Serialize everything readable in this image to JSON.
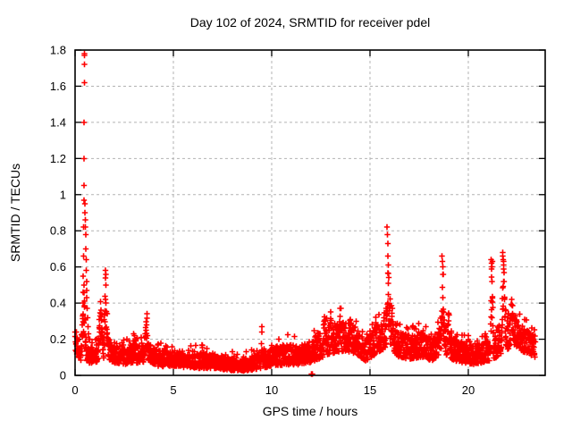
{
  "figure": {
    "title": "Day 102 of 2024, SRMTID for receiver pdel",
    "xlabel": "GPS time / hours",
    "ylabel": "SRMTID / TECUs"
  },
  "chart_data": {
    "type": "scatter",
    "marker": "plus",
    "marker_color": "#ff0000",
    "border_color": "#000000",
    "grid": true,
    "grid_color": "#b3b3b3",
    "xlim": [
      0,
      23.91
    ],
    "ylim": [
      0,
      1.8
    ],
    "x_ticks": [
      {
        "v": 0,
        "label": "0"
      },
      {
        "v": 5,
        "label": "5"
      },
      {
        "v": 10,
        "label": "10"
      },
      {
        "v": 15,
        "label": "15"
      },
      {
        "v": 20,
        "label": "20"
      }
    ],
    "y_ticks": [
      {
        "v": 0,
        "label": "0"
      },
      {
        "v": 0.2,
        "label": "0.2"
      },
      {
        "v": 0.4,
        "label": "0.4"
      },
      {
        "v": 0.6,
        "label": "0.6"
      },
      {
        "v": 0.8,
        "label": "0.8"
      },
      {
        "v": 1,
        "label": "1"
      },
      {
        "v": 1.2,
        "label": "1.2"
      },
      {
        "v": 1.4,
        "label": "1.4"
      },
      {
        "v": 1.6,
        "label": "1.6"
      },
      {
        "v": 1.8,
        "label": "1.8"
      }
    ],
    "t_start": 0,
    "t_end": 23.4,
    "baseline_envelope": [
      [
        0.0,
        0.14,
        0.26
      ],
      [
        0.2,
        0.09,
        0.2
      ],
      [
        0.35,
        0.08,
        0.18
      ],
      [
        0.7,
        0.07,
        0.16
      ],
      [
        1.0,
        0.07,
        0.15
      ],
      [
        1.3,
        0.09,
        0.22
      ],
      [
        1.6,
        0.1,
        0.24
      ],
      [
        1.9,
        0.07,
        0.16
      ],
      [
        2.5,
        0.06,
        0.15
      ],
      [
        3.0,
        0.07,
        0.2
      ],
      [
        3.3,
        0.07,
        0.16
      ],
      [
        3.7,
        0.08,
        0.18
      ],
      [
        4.2,
        0.05,
        0.14
      ],
      [
        5.0,
        0.05,
        0.13
      ],
      [
        6.0,
        0.04,
        0.12
      ],
      [
        7.0,
        0.04,
        0.12
      ],
      [
        7.8,
        0.03,
        0.1
      ],
      [
        8.4,
        0.02,
        0.08
      ],
      [
        9.0,
        0.03,
        0.11
      ],
      [
        9.6,
        0.04,
        0.13
      ],
      [
        10.2,
        0.05,
        0.16
      ],
      [
        10.8,
        0.06,
        0.18
      ],
      [
        11.4,
        0.06,
        0.16
      ],
      [
        12.0,
        0.07,
        0.19
      ],
      [
        12.6,
        0.1,
        0.26
      ],
      [
        13.0,
        0.12,
        0.28
      ],
      [
        13.5,
        0.13,
        0.29
      ],
      [
        14.0,
        0.13,
        0.3
      ],
      [
        14.4,
        0.11,
        0.25
      ],
      [
        14.8,
        0.08,
        0.2
      ],
      [
        15.2,
        0.11,
        0.26
      ],
      [
        15.7,
        0.14,
        0.32
      ],
      [
        16.0,
        0.17,
        0.38
      ],
      [
        16.4,
        0.1,
        0.26
      ],
      [
        17.0,
        0.09,
        0.22
      ],
      [
        17.6,
        0.1,
        0.24
      ],
      [
        18.2,
        0.08,
        0.2
      ],
      [
        18.7,
        0.13,
        0.32
      ],
      [
        19.1,
        0.09,
        0.26
      ],
      [
        19.6,
        0.07,
        0.19
      ],
      [
        20.2,
        0.06,
        0.16
      ],
      [
        20.8,
        0.07,
        0.18
      ],
      [
        21.3,
        0.09,
        0.24
      ],
      [
        21.8,
        0.13,
        0.32
      ],
      [
        22.2,
        0.16,
        0.36
      ],
      [
        22.6,
        0.14,
        0.3
      ],
      [
        23.0,
        0.12,
        0.26
      ],
      [
        23.4,
        0.1,
        0.22
      ]
    ],
    "spikes": [
      [
        0.45,
        0.5,
        0.1
      ],
      [
        1.3,
        0.42,
        0.1
      ],
      [
        1.56,
        0.55,
        0.09
      ],
      [
        3.0,
        0.27,
        0.05
      ],
      [
        3.62,
        0.38,
        0.08
      ],
      [
        9.5,
        0.25,
        0.025
      ],
      [
        12.7,
        0.36,
        0.07
      ],
      [
        13.0,
        0.38,
        0.05
      ],
      [
        13.5,
        0.39,
        0.07
      ],
      [
        14.0,
        0.36,
        0.06
      ],
      [
        15.3,
        0.34,
        0.05
      ],
      [
        15.9,
        0.7,
        0.09
      ],
      [
        16.15,
        0.4,
        0.06
      ],
      [
        18.7,
        0.58,
        0.07
      ],
      [
        19.0,
        0.35,
        0.08
      ],
      [
        21.2,
        0.6,
        0.06
      ],
      [
        21.8,
        0.63,
        0.09
      ],
      [
        22.2,
        0.42,
        0.12
      ],
      [
        23.1,
        0.28,
        0.06
      ]
    ],
    "peak_points": [
      [
        0.36,
        0.28
      ],
      [
        0.38,
        0.33
      ],
      [
        0.4,
        0.4
      ],
      [
        0.41,
        0.46
      ],
      [
        0.42,
        0.55
      ],
      [
        0.43,
        0.66
      ],
      [
        0.44,
        0.82
      ],
      [
        0.45,
        0.97
      ],
      [
        0.455,
        1.05
      ],
      [
        0.46,
        1.2
      ],
      [
        0.465,
        1.4
      ],
      [
        0.47,
        1.62
      ],
      [
        0.475,
        1.72
      ],
      [
        0.48,
        1.78
      ],
      [
        0.485,
        1.77
      ],
      [
        0.5,
        0.95
      ],
      [
        0.51,
        0.9
      ],
      [
        0.52,
        0.86
      ],
      [
        0.53,
        0.82
      ],
      [
        0.54,
        0.78
      ],
      [
        0.55,
        0.7
      ],
      [
        0.56,
        0.64
      ],
      [
        0.57,
        0.58
      ],
      [
        0.58,
        0.52
      ],
      [
        0.59,
        0.47
      ],
      [
        0.6,
        0.43
      ],
      [
        0.62,
        0.37
      ],
      [
        0.64,
        0.32
      ],
      [
        0.66,
        0.27
      ],
      [
        0.68,
        0.23
      ],
      [
        0.7,
        0.2
      ],
      [
        1.55,
        0.58
      ],
      [
        1.56,
        0.56
      ],
      [
        9.5,
        0.27
      ],
      [
        9.51,
        0.24
      ],
      [
        12.03,
        0.008
      ],
      [
        12.07,
        0.008
      ],
      [
        15.86,
        0.82
      ],
      [
        15.88,
        0.78
      ],
      [
        15.9,
        0.73
      ],
      [
        15.92,
        0.66
      ],
      [
        15.94,
        0.61
      ],
      [
        18.66,
        0.66
      ],
      [
        18.68,
        0.63
      ],
      [
        18.7,
        0.6
      ],
      [
        18.72,
        0.56
      ],
      [
        21.16,
        0.64
      ],
      [
        21.18,
        0.62
      ],
      [
        21.2,
        0.6
      ],
      [
        21.22,
        0.63
      ],
      [
        21.74,
        0.68
      ],
      [
        21.76,
        0.66
      ],
      [
        21.78,
        0.64
      ],
      [
        21.8,
        0.61
      ]
    ]
  }
}
